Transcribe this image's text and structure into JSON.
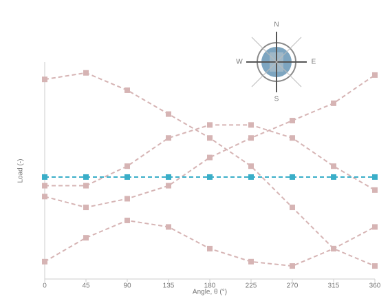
{
  "chart_data": {
    "type": "line",
    "x_label": "Angle, θ (°)",
    "y_label": "Load (-)",
    "x": [
      0,
      45,
      90,
      135,
      180,
      225,
      270,
      315,
      360
    ],
    "xlim": [
      0,
      360
    ],
    "xticks": [
      0,
      45,
      90,
      135,
      180,
      225,
      270,
      315,
      360
    ],
    "ylim": [
      0,
      1
    ],
    "series": [
      {
        "color": "#d6b4b4",
        "values": [
          0.92,
          0.95,
          0.87,
          0.76,
          0.65,
          0.52,
          0.33,
          0.14,
          0.06
        ]
      },
      {
        "color": "#d6b4b4",
        "values": [
          0.43,
          0.43,
          0.52,
          0.65,
          0.71,
          0.71,
          0.65,
          0.52,
          0.41
        ]
      },
      {
        "color": "#d6b4b4",
        "values": [
          0.08,
          0.19,
          0.27,
          0.24,
          0.14,
          0.08,
          0.06,
          0.14,
          0.24
        ]
      },
      {
        "color": "#d6b4b4",
        "values": [
          0.38,
          0.33,
          0.37,
          0.43,
          0.56,
          0.65,
          0.73,
          0.81,
          0.94
        ]
      },
      {
        "color": "#3aaec8",
        "values": [
          0.47,
          0.47,
          0.47,
          0.47,
          0.47,
          0.47,
          0.47,
          0.47,
          0.47
        ]
      }
    ]
  },
  "compass_labels": [
    "N",
    "E",
    "S",
    "W"
  ]
}
